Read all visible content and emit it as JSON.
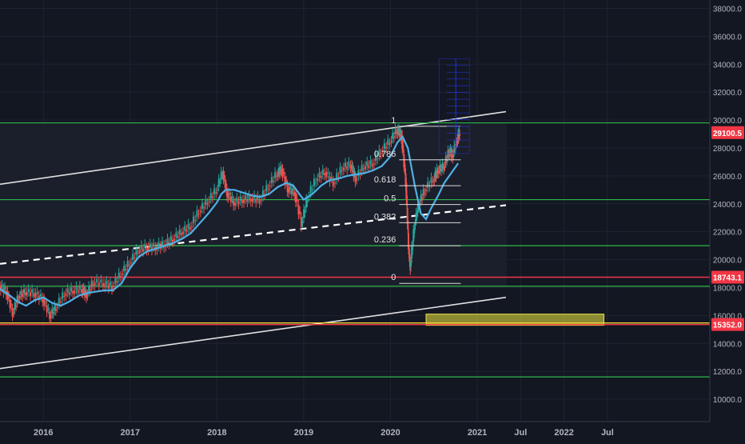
{
  "chart_data": {
    "type": "line",
    "symbol_context": "candlestick price chart with Fibonacci retracement and channel",
    "y_axis": {
      "ticks": [
        10000,
        12000,
        14000,
        16000,
        18000,
        20000,
        22000,
        24000,
        26000,
        28000,
        30000,
        32000,
        34000,
        36000,
        38000
      ],
      "tick_labels": [
        "10000.0",
        "12000.0",
        "14000.0",
        "16000.0",
        "18000.0",
        "20000.0",
        "22000.0",
        "24000.0",
        "26000.0",
        "28000.0",
        "30000.0",
        "32000.0",
        "34000.0",
        "36000.0",
        "38000.0"
      ],
      "range": [
        8400,
        38600
      ]
    },
    "x_axis": {
      "ticks": [
        2016.0,
        2017.0,
        2018.0,
        2019.0,
        2020.0,
        2021.0,
        2021.5,
        2022.0,
        2022.5
      ],
      "tick_labels": [
        "2016",
        "2017",
        "2018",
        "2019",
        "2020",
        "2021",
        "Jul",
        "2022",
        "Jul"
      ],
      "range": [
        2015.5,
        2023.68
      ]
    },
    "price_labels": [
      {
        "value": 29100.5,
        "text": "29100.5",
        "color": "#f23645"
      },
      {
        "value": 18743.1,
        "text": "18743.1",
        "color": "#f23645"
      },
      {
        "value": 15352.0,
        "text": "15352.0",
        "color": "#f23645"
      }
    ],
    "horizontal_levels": {
      "green": [
        29800,
        24300,
        21000,
        18100,
        11600
      ],
      "red": [
        18743.1,
        15352.0
      ],
      "yellow": [
        15352.0
      ]
    },
    "fib_retracement": {
      "levels": [
        {
          "ratio": "1",
          "price": 29550
        },
        {
          "ratio": "0.786",
          "price": 27150
        },
        {
          "ratio": "0.618",
          "price": 25300
        },
        {
          "ratio": "0.5",
          "price": 23950
        },
        {
          "ratio": "0.382",
          "price": 22650
        },
        {
          "ratio": "0.236",
          "price": 21000
        },
        {
          "ratio": "0",
          "price": 18300
        }
      ],
      "x_start": 2020.1,
      "x_end": 2020.81
    },
    "channel": {
      "upper": [
        [
          2015.5,
          25400
        ],
        [
          2021.33,
          30600
        ]
      ],
      "middle_dashed": [
        [
          2015.5,
          19700
        ],
        [
          2021.33,
          23900
        ]
      ],
      "lower": [
        [
          2015.5,
          12200
        ],
        [
          2021.33,
          17300
        ]
      ]
    },
    "supply_zone": {
      "x_start": 2020.41,
      "x_end": 2022.46,
      "top": 16100,
      "bottom": 15300,
      "color": "#b5b33a"
    },
    "price_series_close": [
      [
        2015.5,
        18100
      ],
      [
        2015.58,
        17700
      ],
      [
        2015.65,
        16200
      ],
      [
        2015.72,
        17400
      ],
      [
        2015.8,
        17700
      ],
      [
        2015.9,
        17600
      ],
      [
        2016.0,
        17200
      ],
      [
        2016.08,
        16000
      ],
      [
        2016.15,
        16600
      ],
      [
        2016.25,
        17600
      ],
      [
        2016.35,
        17800
      ],
      [
        2016.45,
        17900
      ],
      [
        2016.5,
        17500
      ],
      [
        2016.58,
        18400
      ],
      [
        2016.7,
        18300
      ],
      [
        2016.8,
        18100
      ],
      [
        2016.9,
        19000
      ],
      [
        2017.0,
        19800
      ],
      [
        2017.1,
        20700
      ],
      [
        2017.2,
        20900
      ],
      [
        2017.3,
        20900
      ],
      [
        2017.4,
        21100
      ],
      [
        2017.5,
        21500
      ],
      [
        2017.6,
        22000
      ],
      [
        2017.7,
        22400
      ],
      [
        2017.8,
        23500
      ],
      [
        2017.9,
        24200
      ],
      [
        2018.0,
        25000
      ],
      [
        2018.07,
        26300
      ],
      [
        2018.12,
        24800
      ],
      [
        2018.2,
        24100
      ],
      [
        2018.3,
        24300
      ],
      [
        2018.4,
        24400
      ],
      [
        2018.5,
        24300
      ],
      [
        2018.6,
        25300
      ],
      [
        2018.7,
        26200
      ],
      [
        2018.75,
        26500
      ],
      [
        2018.82,
        25100
      ],
      [
        2018.9,
        24800
      ],
      [
        2018.98,
        22600
      ],
      [
        2019.05,
        24500
      ],
      [
        2019.15,
        25800
      ],
      [
        2019.25,
        26300
      ],
      [
        2019.35,
        25500
      ],
      [
        2019.45,
        26600
      ],
      [
        2019.55,
        26800
      ],
      [
        2019.6,
        25800
      ],
      [
        2019.7,
        26700
      ],
      [
        2019.8,
        26900
      ],
      [
        2019.9,
        27800
      ],
      [
        2020.0,
        28500
      ],
      [
        2020.08,
        29300
      ],
      [
        2020.13,
        28900
      ],
      [
        2020.18,
        25500
      ],
      [
        2020.21,
        21000
      ],
      [
        2020.23,
        19500
      ],
      [
        2020.28,
        22500
      ],
      [
        2020.33,
        24000
      ],
      [
        2020.4,
        25000
      ],
      [
        2020.5,
        25800
      ],
      [
        2020.55,
        26400
      ],
      [
        2020.62,
        26700
      ],
      [
        2020.68,
        27800
      ],
      [
        2020.72,
        27500
      ],
      [
        2020.77,
        28600
      ],
      [
        2020.8,
        29100
      ]
    ],
    "moving_average": [
      [
        2015.5,
        17900
      ],
      [
        2015.6,
        17500
      ],
      [
        2015.7,
        17000
      ],
      [
        2015.8,
        16700
      ],
      [
        2015.9,
        17100
      ],
      [
        2016.0,
        17300
      ],
      [
        2016.1,
        16900
      ],
      [
        2016.2,
        16700
      ],
      [
        2016.3,
        17000
      ],
      [
        2016.4,
        17400
      ],
      [
        2016.5,
        17600
      ],
      [
        2016.6,
        17700
      ],
      [
        2016.7,
        17800
      ],
      [
        2016.8,
        17800
      ],
      [
        2016.9,
        18300
      ],
      [
        2017.0,
        19400
      ],
      [
        2017.1,
        20200
      ],
      [
        2017.2,
        20600
      ],
      [
        2017.3,
        20800
      ],
      [
        2017.4,
        21000
      ],
      [
        2017.5,
        21200
      ],
      [
        2017.6,
        21500
      ],
      [
        2017.7,
        21900
      ],
      [
        2017.8,
        22600
      ],
      [
        2017.9,
        23300
      ],
      [
        2018.0,
        24100
      ],
      [
        2018.05,
        24700
      ],
      [
        2018.1,
        25000
      ],
      [
        2018.2,
        25000
      ],
      [
        2018.3,
        24800
      ],
      [
        2018.4,
        24600
      ],
      [
        2018.5,
        24500
      ],
      [
        2018.6,
        24700
      ],
      [
        2018.7,
        25200
      ],
      [
        2018.8,
        25500
      ],
      [
        2018.88,
        25300
      ],
      [
        2018.95,
        24700
      ],
      [
        2019.0,
        24300
      ],
      [
        2019.1,
        24700
      ],
      [
        2019.2,
        25300
      ],
      [
        2019.3,
        25700
      ],
      [
        2019.4,
        25800
      ],
      [
        2019.5,
        26000
      ],
      [
        2019.6,
        26100
      ],
      [
        2019.7,
        26200
      ],
      [
        2019.8,
        26400
      ],
      [
        2019.9,
        26700
      ],
      [
        2020.0,
        27400
      ],
      [
        2020.08,
        28400
      ],
      [
        2020.14,
        28800
      ],
      [
        2020.2,
        28000
      ],
      [
        2020.28,
        25300
      ],
      [
        2020.35,
        23300
      ],
      [
        2020.41,
        22900
      ],
      [
        2020.47,
        23700
      ],
      [
        2020.55,
        24600
      ],
      [
        2020.62,
        25500
      ],
      [
        2020.7,
        26200
      ],
      [
        2020.78,
        26900
      ]
    ],
    "projection_box": {
      "x_start": 2020.56,
      "x_end": 2020.91,
      "top": 34400,
      "bottom": 27600
    }
  }
}
